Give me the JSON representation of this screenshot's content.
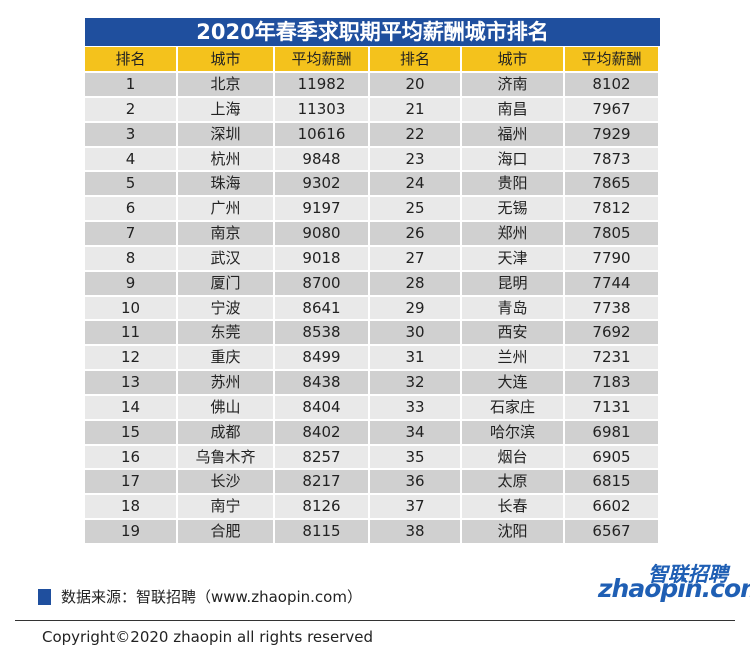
{
  "title": "2020年春季求职期平均薪酬城市排名",
  "header": [
    "排名",
    "城市",
    "平均薪酬",
    "排名",
    "城市",
    "平均薪酬"
  ],
  "rows": [
    [
      1,
      "北京",
      11982,
      20,
      "济南",
      8102
    ],
    [
      2,
      "上海",
      11303,
      21,
      "南昌",
      7967
    ],
    [
      3,
      "深圳",
      10616,
      22,
      "福州",
      7929
    ],
    [
      4,
      "杭州",
      9848,
      23,
      "海口",
      7873
    ],
    [
      5,
      "珠海",
      9302,
      24,
      "贵阳",
      7865
    ],
    [
      6,
      "广州",
      9197,
      25,
      "无锡",
      7812
    ],
    [
      7,
      "南京",
      9080,
      26,
      "郑州",
      7805
    ],
    [
      8,
      "武汉",
      9018,
      27,
      "天津",
      7790
    ],
    [
      9,
      "厦门",
      8700,
      28,
      "昆明",
      7744
    ],
    [
      10,
      "宁波",
      8641,
      29,
      "青岛",
      7738
    ],
    [
      11,
      "东莞",
      8538,
      30,
      "西安",
      7692
    ],
    [
      12,
      "重庆",
      8499,
      31,
      "兰州",
      7231
    ],
    [
      13,
      "苏州",
      8438,
      32,
      "大连",
      7183
    ],
    [
      14,
      "佛山",
      8404,
      33,
      "石家庄",
      7131
    ],
    [
      15,
      "成都",
      8402,
      34,
      "哈尔滨",
      6981
    ],
    [
      16,
      "乌鲁木齐",
      8257,
      35,
      "烟台",
      6905
    ],
    [
      17,
      "长沙",
      8217,
      36,
      "太原",
      6815
    ],
    [
      18,
      "南宁",
      8126,
      37,
      "长春",
      6602
    ],
    [
      19,
      "合肥",
      8115,
      38,
      "沈阳",
      6567
    ]
  ],
  "source": "数据来源：智联招聘（www.zhaopin.com）",
  "logo": {
    "cn": "智联招聘",
    "en": "zhaopin.com"
  },
  "copyright": "Copyright©2020 zhaopin all rights reserved"
}
